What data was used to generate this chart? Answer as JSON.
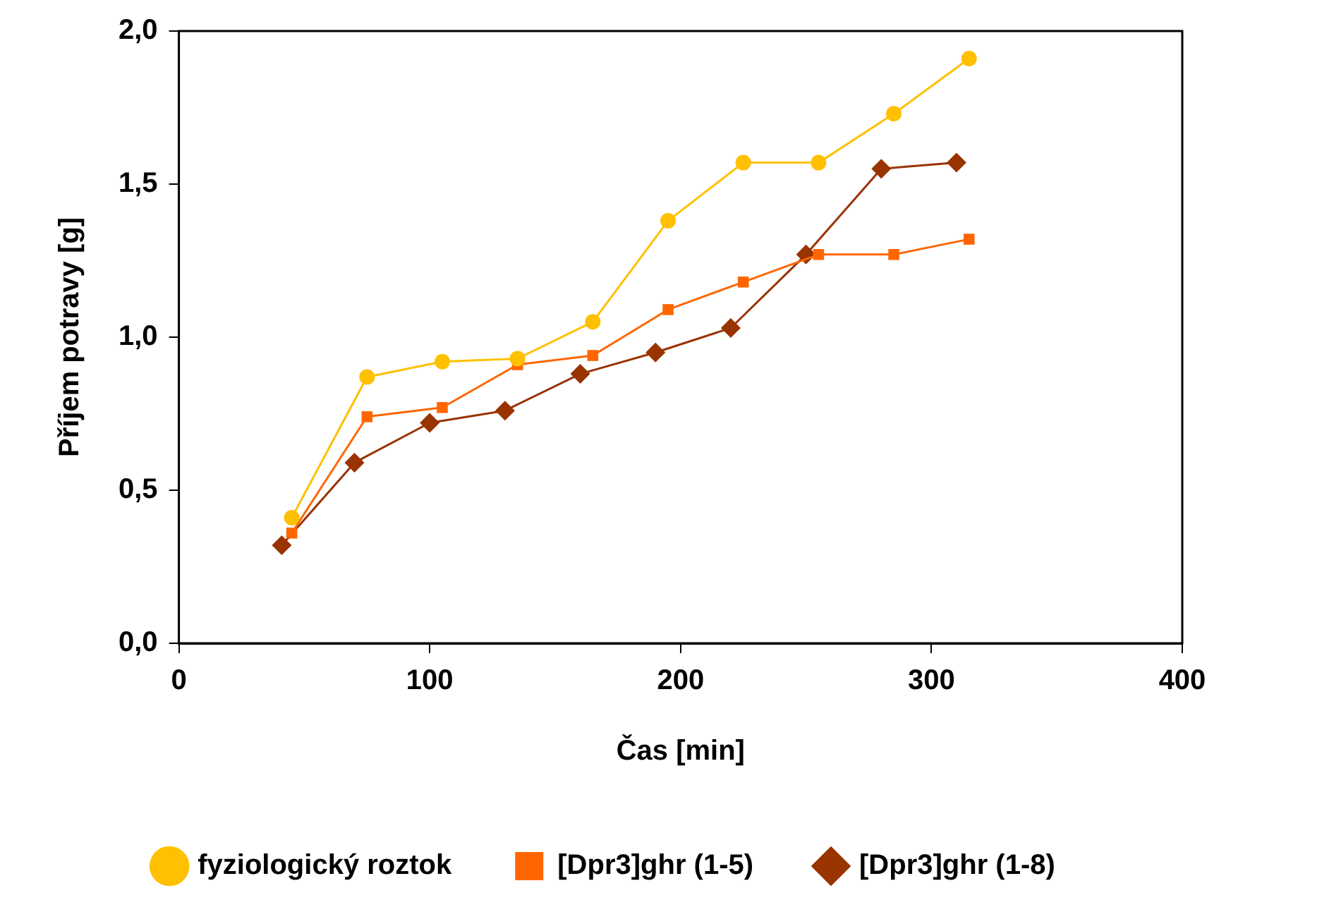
{
  "chart_data": {
    "type": "line",
    "xlabel": "Čas [min]",
    "ylabel": "Příjem potravy [g]",
    "xlim": [
      0,
      400
    ],
    "xticks": [
      0,
      100,
      200,
      300,
      400
    ],
    "ylim": [
      0,
      2
    ],
    "yticks": [
      {
        "value": 0,
        "label": "0,0"
      },
      {
        "value": 0.5,
        "label": "0,5"
      },
      {
        "value": 1,
        "label": "1,0"
      },
      {
        "value": 1.5,
        "label": "1,5"
      },
      {
        "value": 2,
        "label": "2,0"
      }
    ],
    "grid": false,
    "legend": "bottom",
    "line_style": "solid",
    "series": [
      {
        "name": "fyziologický roztok",
        "color": "#ffc000",
        "marker": "circle",
        "x": [
          45,
          75,
          105,
          135,
          165,
          195,
          225,
          255,
          285,
          315
        ],
        "values": [
          0.41,
          0.87,
          0.92,
          0.93,
          1.05,
          1.38,
          1.57,
          1.57,
          1.73,
          1.91
        ]
      },
      {
        "name": "[Dpr3]ghr (1-5)",
        "color": "#ff6600",
        "marker": "square",
        "x": [
          45,
          75,
          105,
          135,
          165,
          195,
          225,
          255,
          285,
          315
        ],
        "values": [
          0.36,
          0.74,
          0.77,
          0.91,
          0.94,
          1.09,
          1.18,
          1.27,
          1.27,
          1.32
        ]
      },
      {
        "name": "[Dpr3]ghr (1-8)",
        "color": "#993300",
        "marker": "diamond",
        "x": [
          41,
          70,
          100,
          130,
          160,
          190,
          220,
          250,
          280,
          310
        ],
        "values": [
          0.32,
          0.59,
          0.72,
          0.76,
          0.88,
          0.95,
          1.03,
          1.27,
          1.55,
          1.57
        ]
      }
    ]
  }
}
